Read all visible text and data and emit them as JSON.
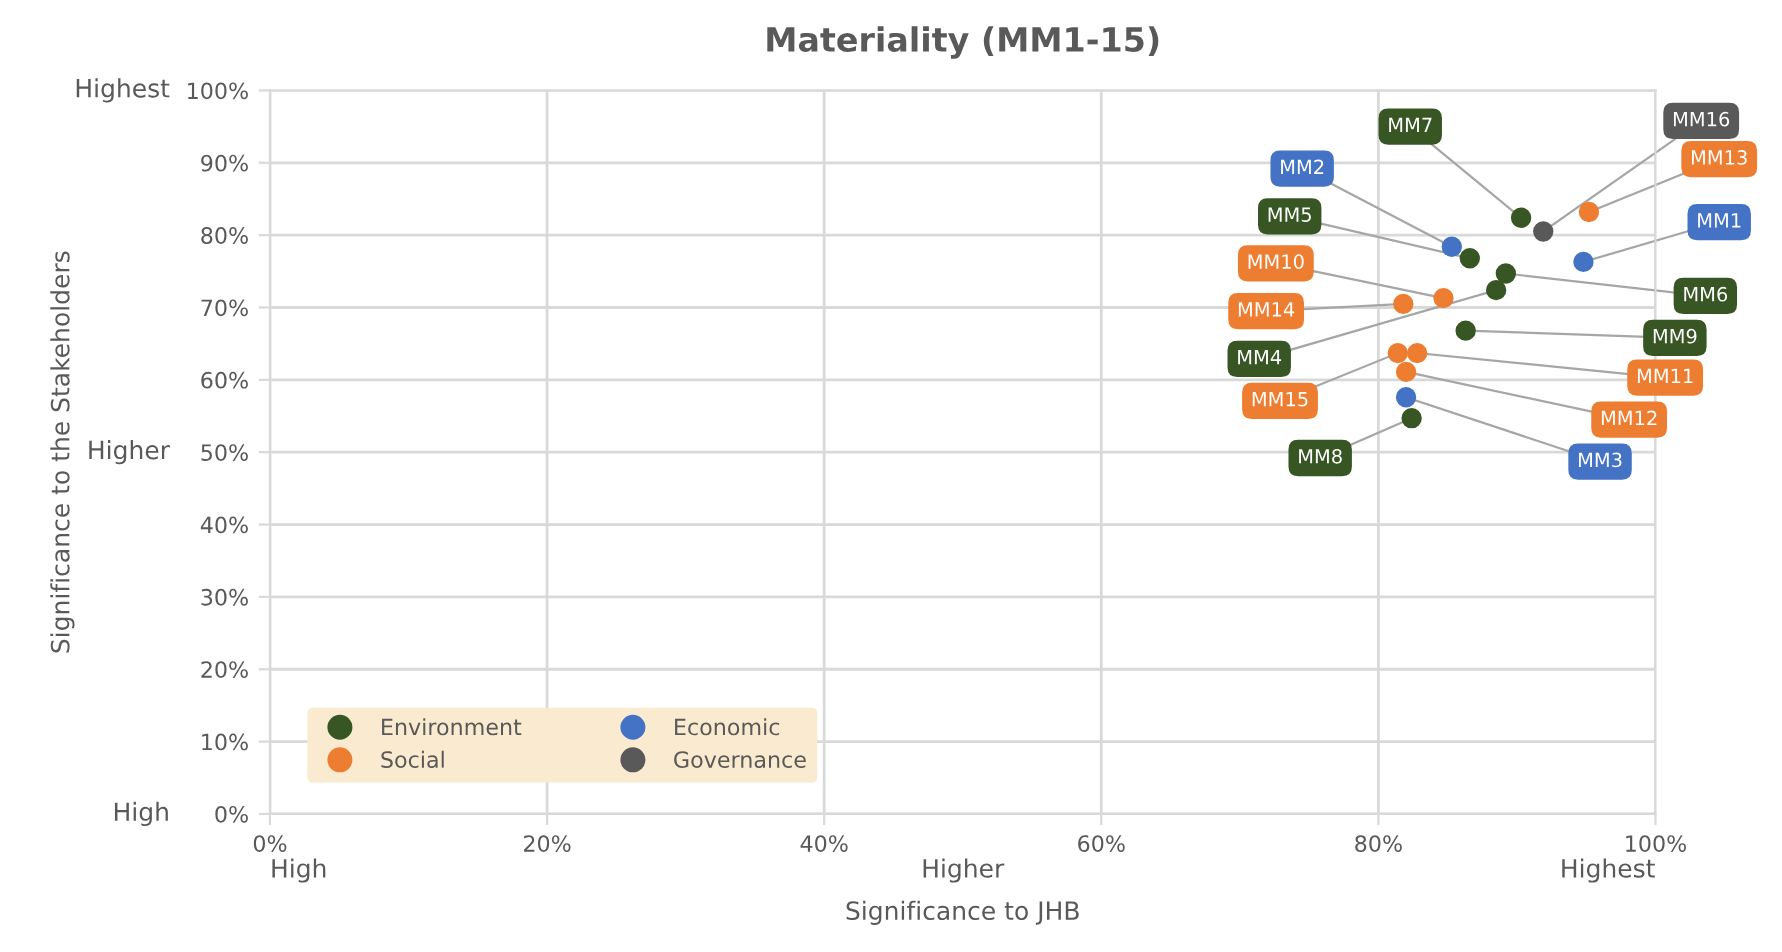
{
  "chart_data": {
    "type": "scatter",
    "title": "Materiality (MM1-15)",
    "xlabel": "Significance to JHB",
    "ylabel": "Significance to the Stakeholders",
    "xlim": [
      0,
      100
    ],
    "ylim": [
      0,
      100
    ],
    "xticks": [
      {
        "value": 0,
        "label": "0%"
      },
      {
        "value": 20,
        "label": "20%"
      },
      {
        "value": 40,
        "label": "40%"
      },
      {
        "value": 60,
        "label": "60%"
      },
      {
        "value": 80,
        "label": "80%"
      },
      {
        "value": 100,
        "label": "100%"
      }
    ],
    "yticks": [
      {
        "value": 0,
        "label": "0%"
      },
      {
        "value": 10,
        "label": "10%"
      },
      {
        "value": 20,
        "label": "20%"
      },
      {
        "value": 30,
        "label": "30%"
      },
      {
        "value": 40,
        "label": "40%"
      },
      {
        "value": 50,
        "label": "50%"
      },
      {
        "value": 60,
        "label": "60%"
      },
      {
        "value": 70,
        "label": "70%"
      },
      {
        "value": 80,
        "label": "80%"
      },
      {
        "value": 90,
        "label": "90%"
      },
      {
        "value": 100,
        "label": "100%"
      }
    ],
    "grid": true,
    "legend": "bottom left",
    "marker": "circle",
    "series": [
      {
        "name": "Environment",
        "color": "#375623",
        "x": [
          90.3,
          86.6,
          89.2,
          88.5,
          86.3,
          82.4
        ],
        "values": [
          82.4,
          76.8,
          74.7,
          72.4,
          66.8,
          54.7
        ]
      },
      {
        "name": "Social",
        "color": "#ed7d31",
        "x": [
          95.2,
          84.7,
          81.8,
          81.4,
          82.8,
          82.0
        ],
        "values": [
          83.2,
          71.3,
          70.5,
          63.7,
          63.7,
          61.1
        ]
      },
      {
        "name": "Economic",
        "color": "#4472c4",
        "x": [
          85.3,
          94.8,
          82.0
        ],
        "values": [
          78.4,
          76.3,
          57.6
        ]
      },
      {
        "name": "Governance",
        "color": "#595959",
        "x": [
          91.9
        ],
        "values": [
          80.5
        ]
      }
    ],
    "annotations": [
      {
        "text": "MM7",
        "x": 90.3,
        "y": 82.4
      },
      {
        "text": "MM16",
        "x": 91.9,
        "y": 80.5
      },
      {
        "text": "MM13",
        "x": 95.2,
        "y": 83.2
      },
      {
        "text": "MM2",
        "x": 85.3,
        "y": 78.4
      },
      {
        "text": "MM5",
        "x": 86.6,
        "y": 76.8
      },
      {
        "text": "MM1",
        "x": 94.8,
        "y": 76.3
      },
      {
        "text": "MM10",
        "x": 84.7,
        "y": 71.3
      },
      {
        "text": "MM6",
        "x": 89.2,
        "y": 74.7
      },
      {
        "text": "MM14",
        "x": 81.8,
        "y": 70.5
      },
      {
        "text": "MM9",
        "x": 86.3,
        "y": 66.8
      },
      {
        "text": "MM4",
        "x": 88.5,
        "y": 72.4
      },
      {
        "text": "MM11",
        "x": 82.8,
        "y": 63.7
      },
      {
        "text": "MM15",
        "x": 81.4,
        "y": 63.7
      },
      {
        "text": "MM12",
        "x": 82.0,
        "y": 61.1
      },
      {
        "text": "MM3",
        "x": 82.0,
        "y": 57.6
      },
      {
        "text": "MM8",
        "x": 82.4,
        "y": 54.7
      },
      "Highest",
      "Higher",
      "High",
      "High",
      "Higher",
      "Highest"
    ]
  }
}
